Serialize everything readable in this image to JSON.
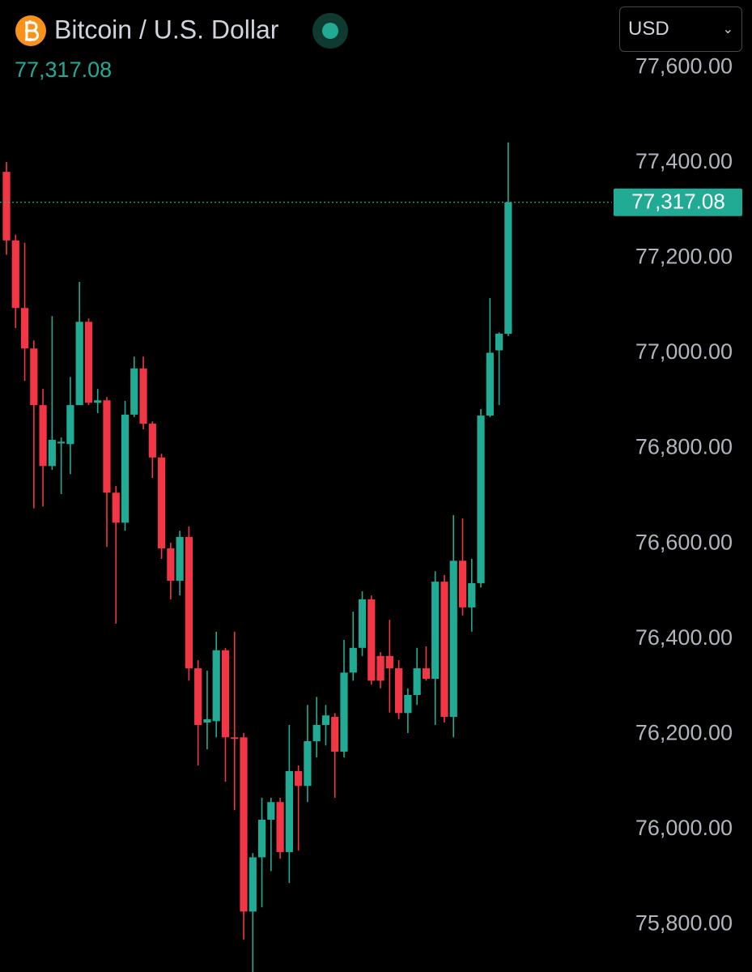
{
  "header": {
    "title": "Bitcoin / U.S. Dollar",
    "currency": "USD"
  },
  "chart_data": {
    "type": "candlestick",
    "up_color": "#22ab94",
    "down_color": "#f23645",
    "ylim": [
      75700,
      77640
    ],
    "yticks": [
      {
        "value": 75800,
        "label": "75,800.00"
      },
      {
        "value": 76000,
        "label": "76,000.00"
      },
      {
        "value": 76200,
        "label": "76,200.00"
      },
      {
        "value": 76400,
        "label": "76,400.00"
      },
      {
        "value": 76600,
        "label": "76,600.00"
      },
      {
        "value": 76800,
        "label": "76,800.00"
      },
      {
        "value": 77000,
        "label": "77,000.00"
      },
      {
        "value": 77200,
        "label": "77,200.00"
      },
      {
        "value": 77400,
        "label": "77,400.00"
      },
      {
        "value": 77600,
        "label": "77,600.00"
      }
    ],
    "last_price": {
      "value": 77317.08,
      "label": "77,317.08"
    },
    "open": [
      77381,
      77237,
      77095,
      77010,
      76891,
      76763,
      76811,
      76809,
      76891,
      77066,
      76896,
      76901,
      76707,
      76644,
      76871,
      76968,
      76852,
      76781,
      76590,
      76522,
      76614,
      76338,
      76224,
      76227,
      76376,
      76193,
      76193,
      75827,
      75941,
      76020,
      76057,
      75952,
      76122,
      76091,
      76185,
      76219,
      76236,
      76163,
      76329,
      76381,
      76483,
      76364,
      76364,
      76338,
      76244,
      76282,
      76338,
      76316,
      76520,
      76236,
      76564,
      76466,
      76517,
      76869,
      77006,
      77041
    ],
    "high": [
      77402,
      77249,
      77232,
      77027,
      76925,
      77078,
      76823,
      76950,
      77150,
      77073,
      76925,
      76908,
      76721,
      76900,
      76993,
      76993,
      76857,
      76789,
      76602,
      76627,
      76636,
      76355,
      76333,
      76415,
      76381,
      76415,
      76202,
      75950,
      76066,
      76066,
      76066,
      76219,
      76134,
      76261,
      76278,
      76261,
      76244,
      76398,
      76457,
      76500,
      76491,
      76372,
      76440,
      76355,
      76296,
      76381,
      76384,
      76542,
      76534,
      76660,
      76653,
      76568,
      76883,
      77116,
      77044,
      77443
    ],
    "low": [
      77207,
      77053,
      76942,
      76674,
      76678,
      76755,
      76704,
      76746,
      76900,
      76891,
      76874,
      76593,
      76432,
      76627,
      76866,
      76840,
      76738,
      76568,
      76483,
      76491,
      76312,
      76134,
      76168,
      76193,
      76100,
      76040,
      75768,
      75700,
      75836,
      75912,
      75938,
      75887,
      75955,
      76057,
      76151,
      76176,
      76066,
      76151,
      76312,
      76364,
      76304,
      76296,
      76245,
      76231,
      76202,
      76261,
      76312,
      76219,
      76224,
      76193,
      76449,
      76415,
      76508,
      76866,
      76891,
      77036
    ],
    "close": [
      77237,
      77095,
      77010,
      76891,
      76763,
      76818,
      76814,
      76891,
      77066,
      76896,
      76901,
      76707,
      76644,
      76871,
      76968,
      76852,
      76781,
      76590,
      76522,
      76614,
      76338,
      76219,
      76231,
      76376,
      76193,
      76190,
      75827,
      75941,
      76020,
      76057,
      75952,
      76122,
      76091,
      76185,
      76219,
      76239,
      76163,
      76329,
      76381,
      76483,
      76312,
      76312,
      76338,
      76244,
      76282,
      76338,
      76316,
      76520,
      76236,
      76564,
      76466,
      76517,
      76869,
      77001,
      77041,
      77317.08
    ]
  }
}
